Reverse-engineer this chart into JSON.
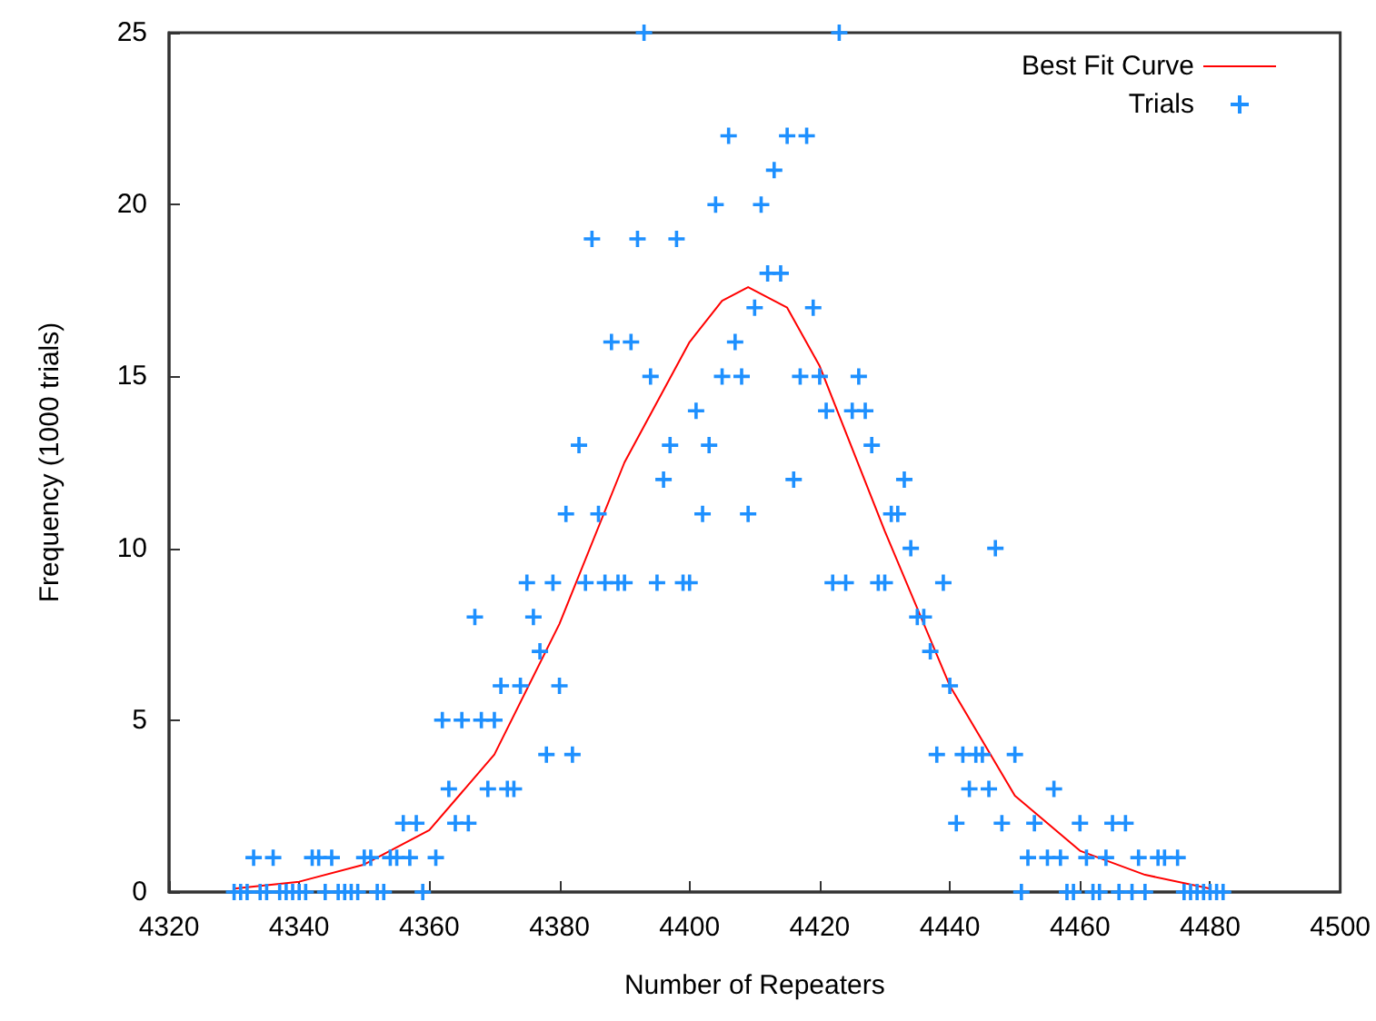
{
  "chart_data": {
    "type": "scatter",
    "xlabel": "Number of Repeaters",
    "ylabel": "Frequency (1000 trials)",
    "xlim": [
      4320,
      4500
    ],
    "xticks": [
      4320,
      4340,
      4360,
      4380,
      4400,
      4420,
      4440,
      4460,
      4480,
      4500
    ],
    "ylim": [
      0,
      25
    ],
    "yticks": [
      0,
      5,
      10,
      15,
      20,
      25
    ],
    "grid": false,
    "legend": "top right",
    "series": [
      {
        "name": "Best Fit Curve",
        "type": "line",
        "color": "#ff0000",
        "marker": "none",
        "line_style": "solid",
        "x": [
          4330,
          4340,
          4350,
          4360,
          4370,
          4380,
          4390,
          4400,
          4405,
          4409,
          4415,
          4420,
          4430,
          4440,
          4450,
          4460,
          4470,
          4480
        ],
        "values": [
          0.1,
          0.3,
          0.8,
          1.8,
          4,
          7.8,
          12.5,
          16,
          17.2,
          17.6,
          17,
          15.3,
          10.5,
          6,
          2.8,
          1.2,
          0.5,
          0.1
        ]
      },
      {
        "name": "Trials",
        "type": "scatter",
        "color": "#1e90ff",
        "marker": "cross",
        "x": [
          4330,
          4331,
          4332,
          4334,
          4335,
          4337,
          4338,
          4339,
          4340,
          4341,
          4344,
          4346,
          4347,
          4348,
          4349,
          4352,
          4353,
          4359,
          4333,
          4336,
          4342,
          4343,
          4345,
          4350,
          4351,
          4354,
          4355,
          4357,
          4361,
          4356,
          4358,
          4364,
          4366,
          4363,
          4369,
          4372,
          4373,
          4362,
          4365,
          4368,
          4370,
          4371,
          4374,
          4380,
          4378,
          4382,
          4377,
          4367,
          4376,
          4375,
          4379,
          4384,
          4387,
          4389,
          4390,
          4395,
          4399,
          4400,
          4381,
          4386,
          4402,
          4409,
          4383,
          4397,
          4403,
          4428,
          4396,
          4416,
          4433,
          4401,
          4421,
          4425,
          4427,
          4394,
          4405,
          4408,
          4417,
          4420,
          4426,
          4388,
          4391,
          4407,
          4410,
          4419,
          4412,
          4414,
          4385,
          4392,
          4398,
          4404,
          4411,
          4413,
          4406,
          4415,
          4418,
          4393,
          4423,
          4431,
          4432,
          4434,
          4447,
          4422,
          4424,
          4429,
          4430,
          4439,
          4435,
          4436,
          4437,
          4440,
          4438,
          4442,
          4444,
          4445,
          4450,
          4443,
          4446,
          4456,
          4441,
          4448,
          4453,
          4460,
          4465,
          4467,
          4452,
          4455,
          4457,
          4461,
          4464,
          4469,
          4472,
          4473,
          4475,
          4451,
          4458,
          4459,
          4462,
          4463,
          4466,
          4468,
          4470,
          4476,
          4477,
          4478,
          4479,
          4480,
          4481,
          4482
        ],
        "values": [
          0,
          0,
          0,
          0,
          0,
          0,
          0,
          0,
          0,
          0,
          0,
          0,
          0,
          0,
          0,
          0,
          0,
          0,
          1,
          1,
          1,
          1,
          1,
          1,
          1,
          1,
          1,
          1,
          1,
          2,
          2,
          2,
          2,
          3,
          3,
          3,
          3,
          5,
          5,
          5,
          5,
          6,
          6,
          6,
          4,
          4,
          7,
          8,
          8,
          9,
          9,
          9,
          9,
          9,
          9,
          9,
          9,
          9,
          11,
          11,
          11,
          11,
          13,
          13,
          13,
          13,
          12,
          12,
          12,
          14,
          14,
          14,
          14,
          15,
          15,
          15,
          15,
          15,
          15,
          16,
          16,
          16,
          17,
          17,
          18,
          18,
          19,
          19,
          19,
          20,
          20,
          21,
          22,
          22,
          22,
          25,
          25,
          11,
          11,
          10,
          10,
          9,
          9,
          9,
          9,
          9,
          8,
          8,
          7,
          6,
          4,
          4,
          4,
          4,
          4,
          3,
          3,
          3,
          2,
          2,
          2,
          2,
          2,
          2,
          1,
          1,
          1,
          1,
          1,
          1,
          1,
          1,
          1,
          0,
          0,
          0,
          0,
          0,
          0,
          0,
          0,
          0,
          0,
          0,
          0,
          0,
          0,
          0
        ]
      }
    ]
  }
}
